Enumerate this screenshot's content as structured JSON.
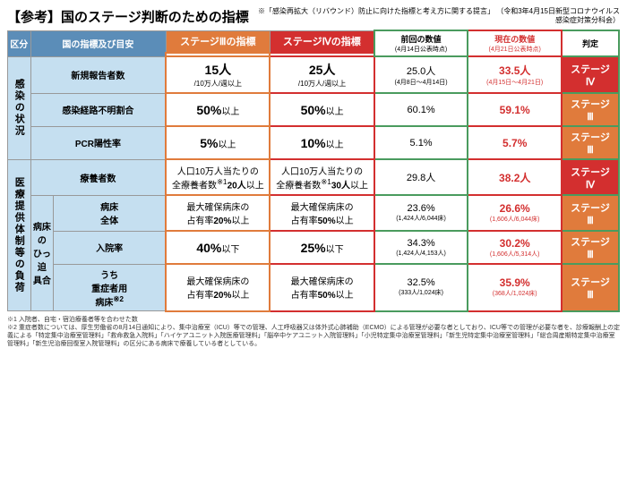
{
  "title": "【参考】国のステージ判断のための指標",
  "note_top": "※「感染再拡大（リバウンド）防止に向けた指標と考え方に関する提言」\n（令和3年4月15日新型コロナウイルス感染症対策分科会）",
  "headers": {
    "kubun": "区分",
    "kuni": "国の指標及び目安",
    "s3": "ステージⅢの指標",
    "s4": "ステージⅣの指標",
    "prev": "前回の数値",
    "prev_sub": "(4月14日公表時点)",
    "curr": "現在の数値",
    "curr_sub": "(4月21日公表時点)",
    "judge": "判定"
  },
  "cats": {
    "c1": "感染の状況",
    "c2": "医療提供体制等の負荷"
  },
  "rows": [
    {
      "lbl": "新規報告者数",
      "s3": "<span class='big'>15人</span><span class='sm2'>/10万人/週以上</span>",
      "s4": "<span class='big'>25人</span><span class='sm2'>/10万人/週以上</span>",
      "prev": "25.0人<span class='sm'>(4月8日～4月14日)</span>",
      "curr": "33.5人<span class='sm'>(4月15日～4月21日)</span>",
      "j": "ステージ<br>Ⅳ",
      "jc": "judge-4"
    },
    {
      "lbl": "感染経路不明割合",
      "s3": "<span class='big'>50%</span>以上",
      "s4": "<span class='big'>50%</span>以上",
      "prev": "60.1%",
      "curr": "59.1%",
      "j": "ステージ<br>Ⅲ",
      "jc": "judge-3"
    },
    {
      "lbl": "PCR陽性率",
      "s3": "<span class='big'>5%</span>以上",
      "s4": "<span class='big'>10%</span>以上",
      "prev": "5.1%",
      "curr": "5.7%",
      "j": "ステージ<br>Ⅲ",
      "jc": "judge-3"
    },
    {
      "lbl": "療養者数",
      "s3": "人口10万人当たりの<br>全療養者数<sup>※1</sup><b>20人</b>以上",
      "s4": "人口10万人当たりの<br>全療養者数<sup>※1</sup><b>30人</b>以上",
      "prev": "29.8人",
      "curr": "38.2人",
      "j": "ステージ<br>Ⅳ",
      "jc": "judge-4"
    },
    {
      "lbl": "病床<br>全体",
      "s3": "最大確保病床の<br>占有率<b>20%</b>以上",
      "s4": "最大確保病床の<br>占有率<b>50%</b>以上",
      "prev": "23.6%<span class='sm'>(1,424人/6,044床)</span>",
      "curr": "26.6%<span class='sm'>(1,606人/6,044床)</span>",
      "j": "ステージ<br>Ⅲ",
      "jc": "judge-3"
    },
    {
      "lbl": "入院率",
      "s3": "<span class='big'>40%</span>以下",
      "s4": "<span class='big'>25%</span>以下",
      "prev": "34.3%<span class='sm'>(1,424人/4,153人)</span>",
      "curr": "30.2%<span class='sm'>(1,606人/5,314人)</span>",
      "j": "ステージ<br>Ⅲ",
      "jc": "judge-3"
    },
    {
      "lbl": "うち<br>重症者用<br>病床<sup>※2</sup>",
      "s3": "最大確保病床の<br>占有率<b>20%</b>以上",
      "s4": "最大確保病床の<br>占有率<b>50%</b>以上",
      "prev": "32.5%<span class='sm'>(333人/1,024床)</span>",
      "curr": "35.9%<span class='sm'>(368人/1,024床)</span>",
      "j": "ステージ<br>Ⅲ",
      "jc": "judge-3"
    }
  ],
  "bedlbl": "病床の<br>ひっ迫<br>具合",
  "footnote": "※1 入院者、自宅・宿泊療養者等を合わせた数<br>※2 重症者数については、厚生労働省の8月14日通知により、集中治療室（ICU）等での管理、人工呼吸器又は体外式心肺補助（ECMO）による管理が必要な者としており、ICU等での管理が必要な者を、診療報酬上の定義による「特定集中治療室管理料」「救命救急入院料」「ハイケアユニット入院医療管理料」「脳卒中ケアユニット入院管理料」「小児特定集中治療室管理料」「新生児特定集中治療室管理料」「総合周産期特定集中治療室管理料」「新生児治療回復室入院管理料」の区分にある病床で療養している者としている。"
}
